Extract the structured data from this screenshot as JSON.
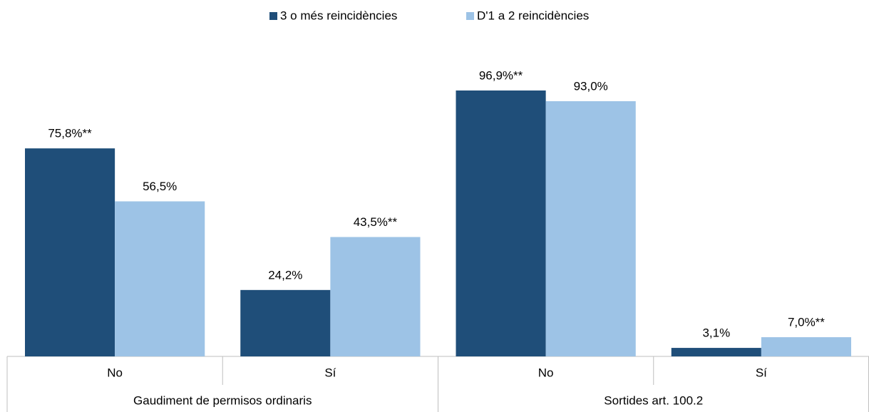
{
  "chart_data": {
    "type": "bar",
    "groups": [
      {
        "name": "Gaudiment de permisos ordinaris",
        "categories": [
          "No",
          "Sí"
        ]
      },
      {
        "name": "Sortides art. 100.2",
        "categories": [
          "No",
          "Sí"
        ]
      }
    ],
    "series": [
      {
        "name": "3 o més reincidències",
        "color": "#1f4e79",
        "values": [
          75.8,
          24.2,
          96.9,
          3.1
        ],
        "value_labels": [
          "75,8%**",
          "24,2%",
          "96,9%**",
          "3,1%"
        ]
      },
      {
        "name": "D'1 a 2 reincidències",
        "color": "#9dc3e6",
        "values": [
          56.5,
          43.5,
          93.0,
          7.0
        ],
        "value_labels": [
          "56,5%",
          "43,5%**",
          "93,0%",
          "7,0%**"
        ]
      }
    ],
    "ylim": [
      0,
      100
    ],
    "legend": "top"
  }
}
